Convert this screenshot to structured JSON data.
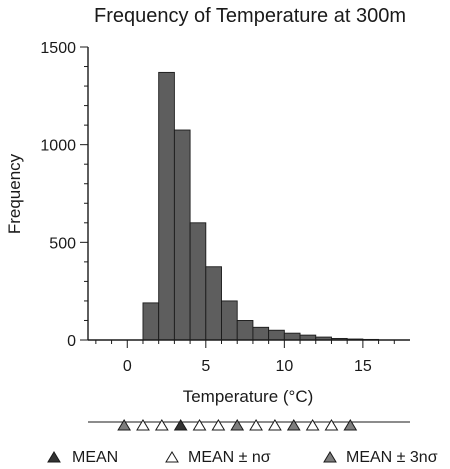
{
  "colors": {
    "bar_fill": "#5e5e5e",
    "bar_stroke": "#1a1a1a",
    "axis": "#1a1a1a",
    "marker_dark": "#333333",
    "marker_gray": "#7d7d7d",
    "marker_open": "#ffffff",
    "background": "#ffffff"
  },
  "chart_data": {
    "type": "bar",
    "title": "Frequency of Temperature at 300m",
    "xlabel": "Temperature (°C)",
    "ylabel": "Frequency",
    "xlim": [
      -2.5,
      18
    ],
    "ylim": [
      0,
      1500
    ],
    "x_ticks": [
      0,
      5,
      10,
      15
    ],
    "y_ticks": [
      0,
      500,
      1000,
      1500
    ],
    "grid": false,
    "bin_width": 1,
    "bins": [
      {
        "start": 1,
        "end": 2,
        "value": 190
      },
      {
        "start": 2,
        "end": 3,
        "value": 1370
      },
      {
        "start": 3,
        "end": 4,
        "value": 1075
      },
      {
        "start": 4,
        "end": 5,
        "value": 600
      },
      {
        "start": 5,
        "end": 6,
        "value": 375
      },
      {
        "start": 6,
        "end": 7,
        "value": 200
      },
      {
        "start": 7,
        "end": 8,
        "value": 100
      },
      {
        "start": 8,
        "end": 9,
        "value": 65
      },
      {
        "start": 9,
        "end": 10,
        "value": 50
      },
      {
        "start": 10,
        "end": 11,
        "value": 35
      },
      {
        "start": 11,
        "end": 12,
        "value": 25
      },
      {
        "start": 12,
        "end": 13,
        "value": 15
      },
      {
        "start": 13,
        "end": 14,
        "value": 8
      },
      {
        "start": 14,
        "end": 15,
        "value": 5
      },
      {
        "start": 15,
        "end": 16,
        "value": 3
      }
    ],
    "markers": [
      {
        "x": -0.2,
        "kind": "mean_3sigma"
      },
      {
        "x": 1.0,
        "kind": "mean_nsigma"
      },
      {
        "x": 2.2,
        "kind": "mean_nsigma"
      },
      {
        "x": 3.4,
        "kind": "mean"
      },
      {
        "x": 4.6,
        "kind": "mean_nsigma"
      },
      {
        "x": 5.8,
        "kind": "mean_nsigma"
      },
      {
        "x": 7.0,
        "kind": "mean_3sigma"
      },
      {
        "x": 8.2,
        "kind": "mean_nsigma"
      },
      {
        "x": 9.4,
        "kind": "mean_nsigma"
      },
      {
        "x": 10.6,
        "kind": "mean_3sigma"
      },
      {
        "x": 11.8,
        "kind": "mean_nsigma"
      },
      {
        "x": 13.0,
        "kind": "mean_nsigma"
      },
      {
        "x": 14.2,
        "kind": "mean_3sigma"
      }
    ],
    "legend": [
      {
        "kind": "mean",
        "label": "MEAN"
      },
      {
        "kind": "mean_nsigma",
        "label": "MEAN ± nσ"
      },
      {
        "kind": "mean_3sigma",
        "label": "MEAN ± 3nσ"
      }
    ],
    "legend_position": "bottom"
  }
}
